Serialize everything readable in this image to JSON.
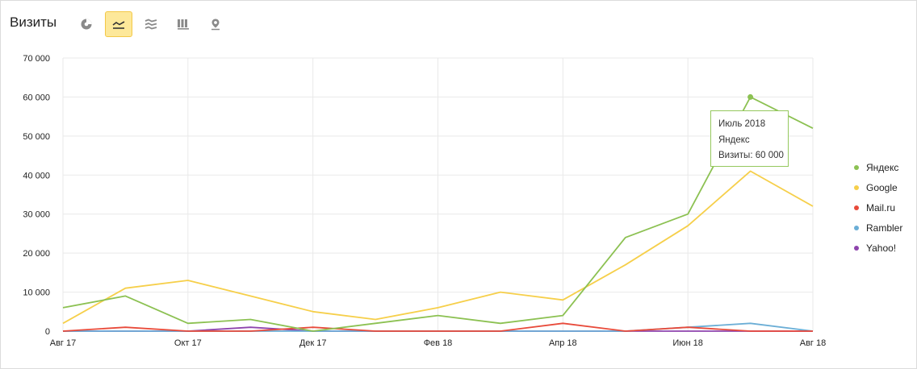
{
  "header": {
    "title": "Визиты"
  },
  "toolbar": {
    "buttons": [
      {
        "icon": "pie-chart-icon",
        "active": false
      },
      {
        "icon": "line-chart-icon",
        "active": true
      },
      {
        "icon": "area-chart-icon",
        "active": false
      },
      {
        "icon": "bar-chart-icon",
        "active": false
      },
      {
        "icon": "map-pin-icon",
        "active": false
      }
    ]
  },
  "colors": {
    "yandex": "#8cc152",
    "google": "#f6cf4a",
    "mailru": "#e84a3a",
    "rambler": "#6baed6",
    "yahoo": "#8e44ad",
    "grid": "#e9e9e9"
  },
  "tooltip": {
    "date": "Июль 2018",
    "series": "Яндекс",
    "value_text": "Визиты: 60 000"
  },
  "chart_data": {
    "type": "line",
    "x": [
      "2017-08",
      "2017-09",
      "2017-10",
      "2017-11",
      "2017-12",
      "2018-01",
      "2018-02",
      "2018-03",
      "2018-04",
      "2018-05",
      "2018-06",
      "2018-07",
      "2018-08"
    ],
    "x_tick_labels": [
      "Авг 17",
      "",
      "Окт 17",
      "",
      "Дек 17",
      "",
      "Фев 18",
      "",
      "Апр 18",
      "",
      "Июн 18",
      "",
      "Авг 18"
    ],
    "y_tick_labels": [
      "0",
      "10 000",
      "20 000",
      "30 000",
      "40 000",
      "50 000",
      "60 000",
      "70 000"
    ],
    "ylim": [
      0,
      70000
    ],
    "grid": true,
    "legend_position": "right",
    "highlight": {
      "series": "Яндекс",
      "x": "2018-07",
      "value": 60000
    },
    "series": [
      {
        "name": "Яндекс",
        "color": "#8cc152",
        "values": [
          6000,
          9000,
          2000,
          3000,
          0,
          2000,
          4000,
          2000,
          4000,
          24000,
          30000,
          60000,
          52000
        ]
      },
      {
        "name": "Google",
        "color": "#f6cf4a",
        "values": [
          2000,
          11000,
          13000,
          9000,
          5000,
          3000,
          6000,
          10000,
          8000,
          17000,
          27000,
          41000,
          32000
        ]
      },
      {
        "name": "Mail.ru",
        "color": "#e84a3a",
        "values": [
          0,
          1000,
          0,
          0,
          1000,
          0,
          0,
          0,
          2000,
          0,
          1000,
          0,
          0
        ]
      },
      {
        "name": "Rambler",
        "color": "#6baed6",
        "values": [
          0,
          0,
          0,
          0,
          0,
          0,
          0,
          0,
          0,
          0,
          1000,
          2000,
          0
        ]
      },
      {
        "name": "Yahoo!",
        "color": "#8e44ad",
        "values": [
          0,
          0,
          0,
          1000,
          0,
          0,
          0,
          0,
          0,
          0,
          0,
          0,
          0
        ]
      }
    ]
  }
}
